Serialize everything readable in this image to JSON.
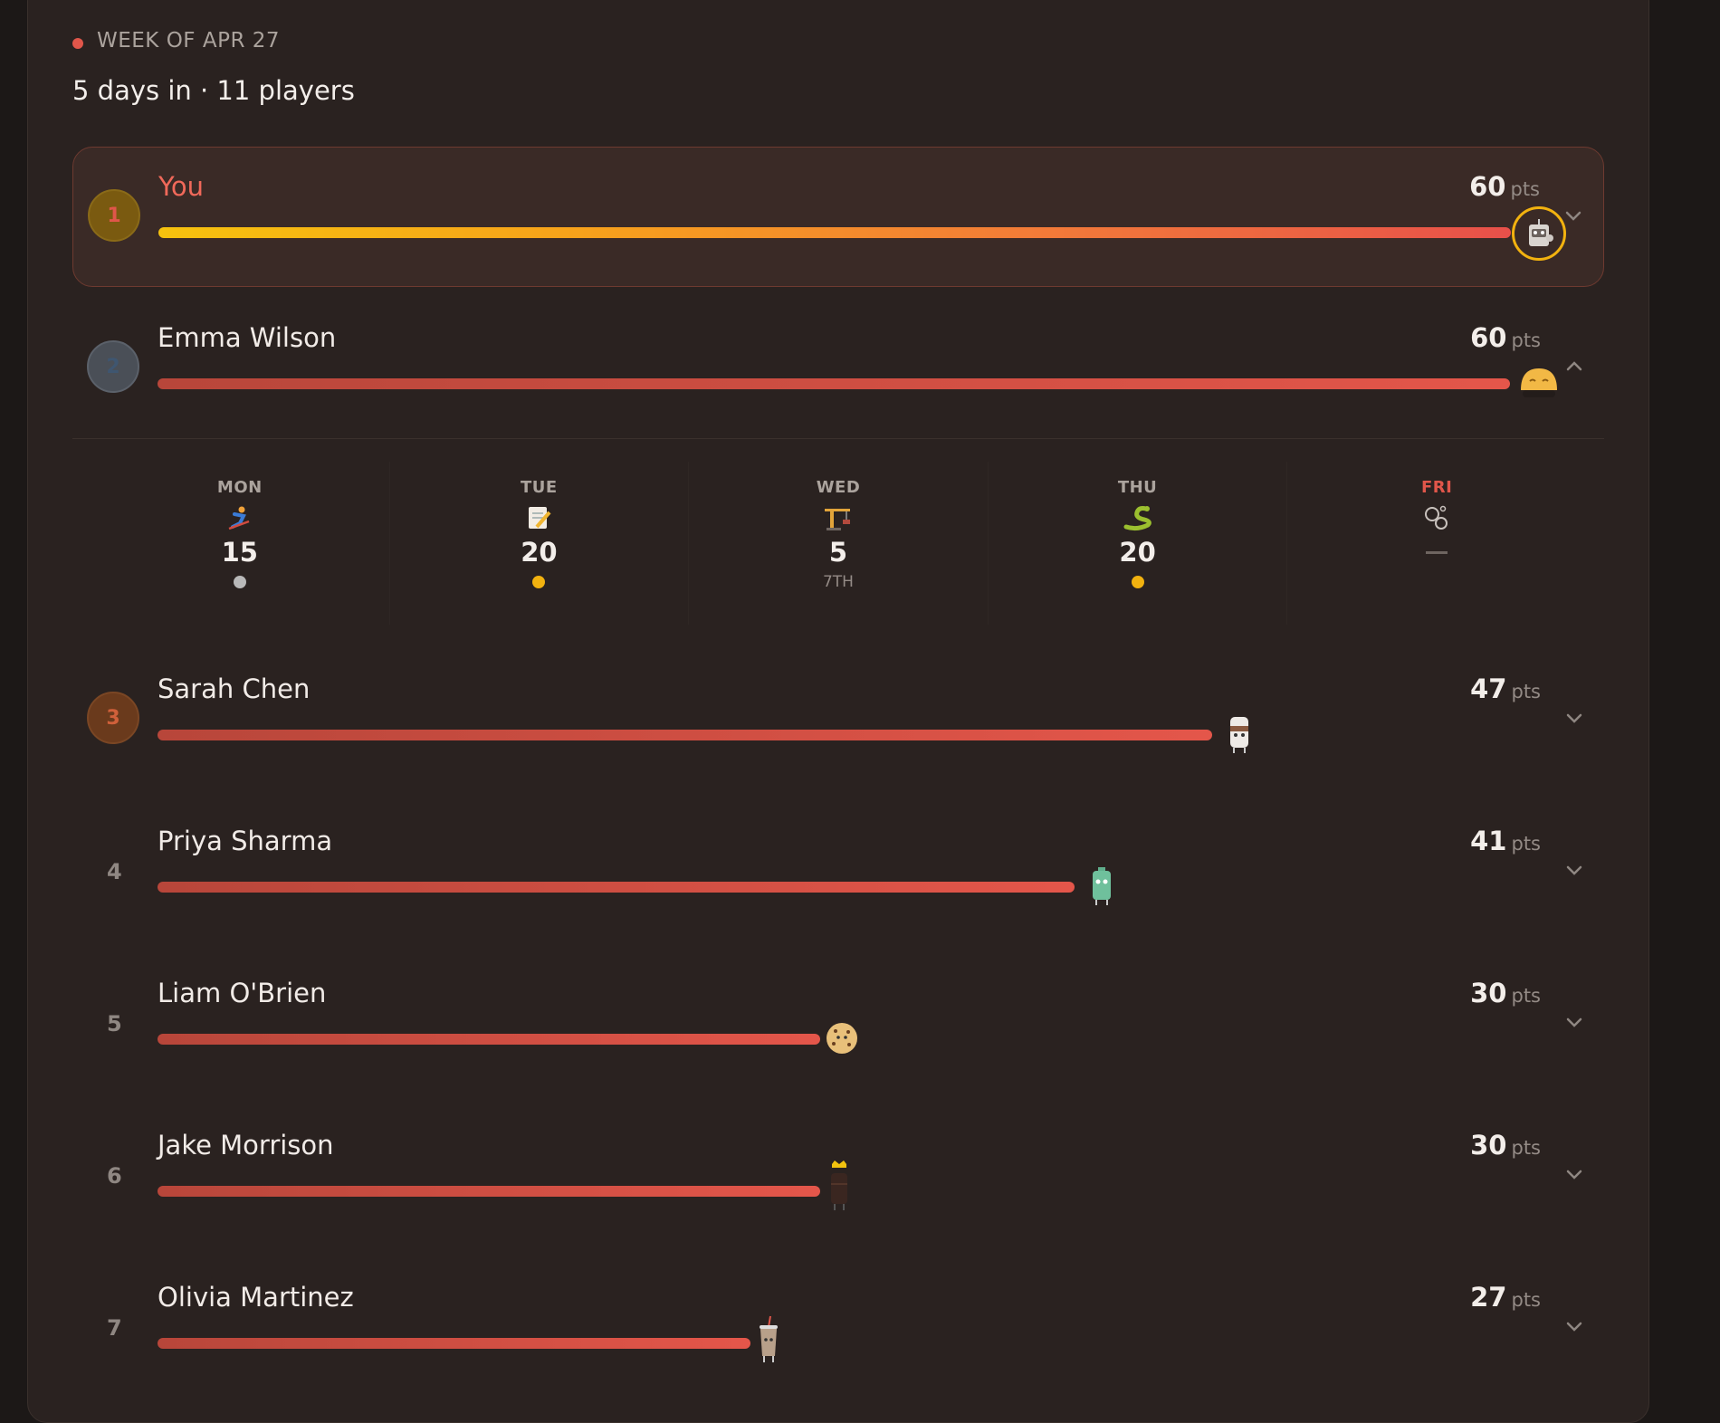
{
  "header": {
    "week_label": "WEEK OF APR 27",
    "subtitle": "5 days in · 11 players"
  },
  "players": [
    {
      "rank": "1",
      "name": "You",
      "points": "60",
      "unit": "pts",
      "progress_pct": 100,
      "avatar": "robot-icon"
    },
    {
      "rank": "2",
      "name": "Emma Wilson",
      "points": "60",
      "unit": "pts",
      "progress_pct": 100,
      "avatar": "dumpling-icon"
    },
    {
      "rank": "3",
      "name": "Sarah Chen",
      "points": "47",
      "unit": "pts",
      "progress_pct": 78,
      "avatar": "marshmallow-icon"
    },
    {
      "rank": "4",
      "name": "Priya Sharma",
      "points": "41",
      "unit": "pts",
      "progress_pct": 68,
      "avatar": "battery-icon"
    },
    {
      "rank": "5",
      "name": "Liam O'Brien",
      "points": "30",
      "unit": "pts",
      "progress_pct": 49,
      "avatar": "cookie-icon"
    },
    {
      "rank": "6",
      "name": "Jake Morrison",
      "points": "30",
      "unit": "pts",
      "progress_pct": 49,
      "avatar": "chocolate-king-icon"
    },
    {
      "rank": "7",
      "name": "Olivia Martinez",
      "points": "27",
      "unit": "pts",
      "progress_pct": 44,
      "avatar": "cup-icon"
    }
  ],
  "expanded_breakdown": {
    "days": [
      {
        "label": "MON",
        "icon": "skier-icon",
        "score": "15",
        "rank": "",
        "medal": "silver"
      },
      {
        "label": "TUE",
        "icon": "memo-icon",
        "score": "20",
        "rank": "",
        "medal": "gold"
      },
      {
        "label": "WED",
        "icon": "crane-icon",
        "score": "5",
        "rank": "7TH",
        "medal": ""
      },
      {
        "label": "THU",
        "icon": "snake-icon",
        "score": "20",
        "rank": "",
        "medal": "gold"
      },
      {
        "label": "FRI",
        "icon": "bubbles-icon",
        "score": "",
        "rank": "",
        "medal": "",
        "today": true
      }
    ]
  },
  "colors": {
    "accent": "#e0564a",
    "gold": "#f2b20f",
    "bar_gradient_you": [
      "#f6c20e",
      "#e8504a"
    ]
  }
}
